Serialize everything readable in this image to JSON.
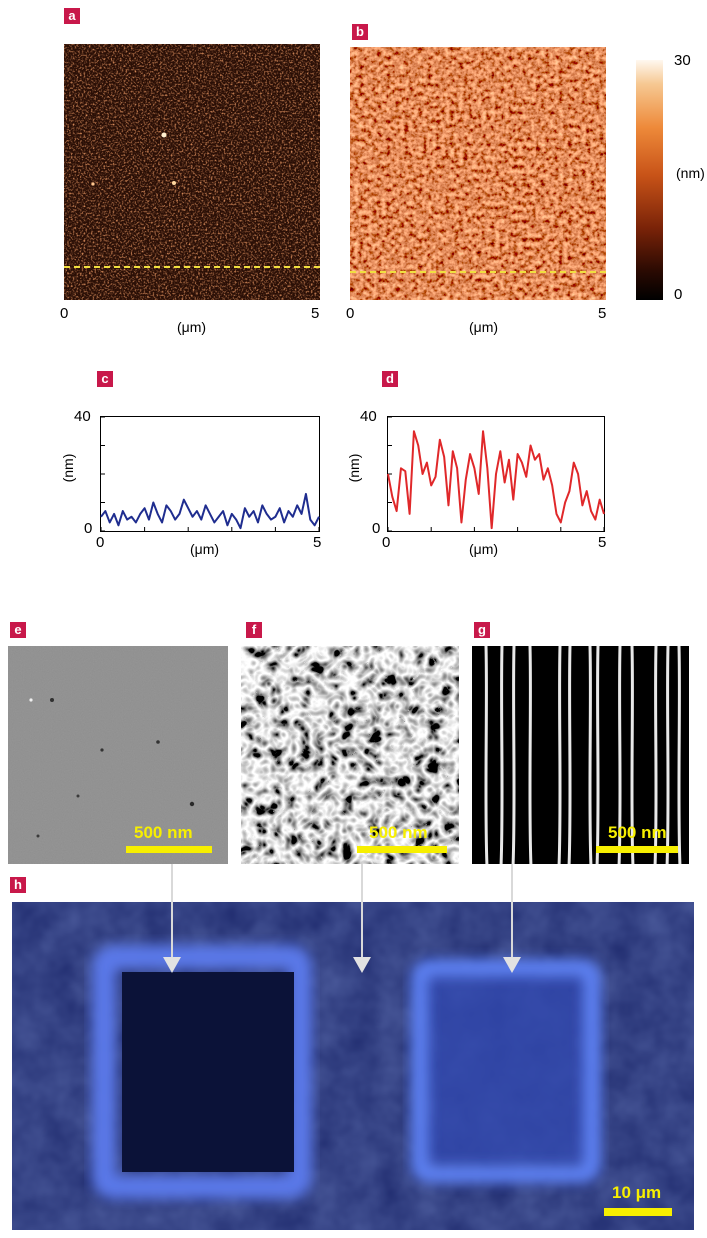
{
  "panels": {
    "a": "a",
    "b": "b",
    "c": "c",
    "d": "d",
    "e": "e",
    "f": "f",
    "g": "g",
    "h": "h"
  },
  "afm": {
    "x_start": "0",
    "x_end": "5",
    "x_unit": "(μm)",
    "colorbar_max": "30",
    "colorbar_min": "0",
    "colorbar_unit": "(nm)"
  },
  "profiles": {
    "y_unit": "(nm)",
    "x_unit": "(μm)",
    "y_max": "40",
    "y_min": "0",
    "x_min": "0",
    "x_max": "5"
  },
  "sem": {
    "scale_e": "500 nm",
    "scale_f": "500 nm",
    "scale_g": "500 nm"
  },
  "optical": {
    "scale_h": "10 μm"
  },
  "chart_data": [
    {
      "type": "line",
      "title": "",
      "xlabel": "(μm)",
      "ylabel": "(nm)",
      "xlim": [
        0,
        5
      ],
      "ylim": [
        0,
        40
      ],
      "series": [
        {
          "color": "#1f2d8f",
          "x": [
            0,
            0.1,
            0.2,
            0.3,
            0.4,
            0.5,
            0.6,
            0.7,
            0.8,
            0.9,
            1.0,
            1.1,
            1.2,
            1.3,
            1.4,
            1.5,
            1.6,
            1.7,
            1.8,
            1.9,
            2.0,
            2.1,
            2.2,
            2.3,
            2.4,
            2.5,
            2.6,
            2.7,
            2.8,
            2.9,
            3.0,
            3.1,
            3.2,
            3.3,
            3.4,
            3.5,
            3.6,
            3.7,
            3.8,
            3.9,
            4.0,
            4.1,
            4.2,
            4.3,
            4.4,
            4.5,
            4.6,
            4.7,
            4.8,
            4.9,
            5.0
          ],
          "values": [
            5,
            7,
            3,
            6,
            2,
            7,
            4,
            5,
            3,
            6,
            8,
            4,
            10,
            6,
            3,
            9,
            7,
            4,
            6,
            11,
            8,
            5,
            7,
            4,
            9,
            6,
            3,
            5,
            7,
            2,
            6,
            4,
            1,
            8,
            5,
            7,
            3,
            9,
            6,
            4,
            5,
            8,
            3,
            7,
            5,
            9,
            6,
            13,
            4,
            2,
            5
          ]
        }
      ]
    },
    {
      "type": "line",
      "title": "",
      "xlabel": "(μm)",
      "ylabel": "(nm)",
      "xlim": [
        0,
        5
      ],
      "ylim": [
        0,
        40
      ],
      "series": [
        {
          "color": "#e0282a",
          "x": [
            0,
            0.1,
            0.2,
            0.3,
            0.4,
            0.5,
            0.6,
            0.7,
            0.8,
            0.9,
            1.0,
            1.1,
            1.2,
            1.3,
            1.4,
            1.5,
            1.6,
            1.7,
            1.8,
            1.9,
            2.0,
            2.1,
            2.2,
            2.3,
            2.4,
            2.5,
            2.6,
            2.7,
            2.8,
            2.9,
            3.0,
            3.1,
            3.2,
            3.3,
            3.4,
            3.5,
            3.6,
            3.7,
            3.8,
            3.9,
            4.0,
            4.1,
            4.2,
            4.3,
            4.4,
            4.5,
            4.6,
            4.7,
            4.8,
            4.9,
            5.0
          ],
          "values": [
            20,
            12,
            7,
            22,
            21,
            6,
            35,
            30,
            20,
            24,
            16,
            19,
            32,
            26,
            9,
            28,
            22,
            3,
            18,
            27,
            22,
            13,
            35,
            22,
            1,
            20,
            28,
            17,
            25,
            11,
            27,
            24,
            19,
            30,
            25,
            27,
            18,
            22,
            16,
            6,
            3,
            10,
            14,
            24,
            20,
            9,
            14,
            7,
            4,
            11,
            6
          ]
        }
      ]
    }
  ]
}
